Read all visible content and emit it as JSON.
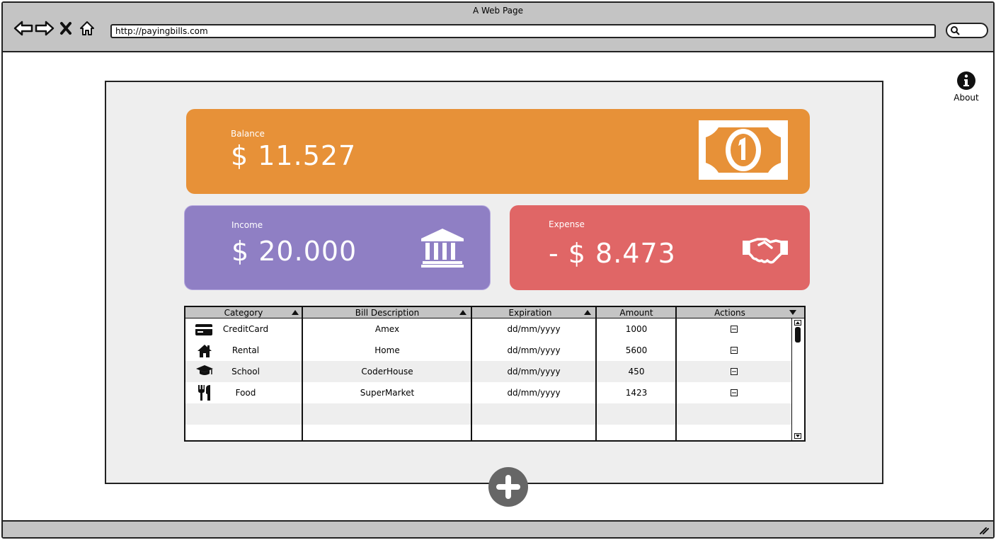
{
  "window": {
    "title": "A Web Page",
    "url": "http://payingbills.com"
  },
  "about": {
    "label": "About"
  },
  "balance": {
    "label": "Balance",
    "value": "$ 11.527"
  },
  "income": {
    "label": "Income",
    "value": "$ 20.000"
  },
  "expense": {
    "label": "Expense",
    "value": "- $ 8.473"
  },
  "table": {
    "columns": [
      "Category",
      "Bill Description",
      "Expiration",
      "Amount",
      "Actions"
    ],
    "rows": [
      {
        "icon": "credit-card-icon",
        "category": "CreditCard",
        "description": "Amex",
        "expiration": "dd/mm/yyyy",
        "amount": "1000"
      },
      {
        "icon": "home-icon",
        "category": "Rental",
        "description": "Home",
        "expiration": "dd/mm/yyyy",
        "amount": "5600"
      },
      {
        "icon": "graduation-cap-icon",
        "category": "School",
        "description": "CoderHouse",
        "expiration": "dd/mm/yyyy",
        "amount": "450"
      },
      {
        "icon": "utensils-icon",
        "category": "Food",
        "description": "SuperMarket",
        "expiration": "dd/mm/yyyy",
        "amount": "1423"
      }
    ]
  },
  "colors": {
    "balance": "#e79138",
    "income": "#8f7fc4",
    "expense": "#e06666",
    "panel": "#eeeeee"
  }
}
